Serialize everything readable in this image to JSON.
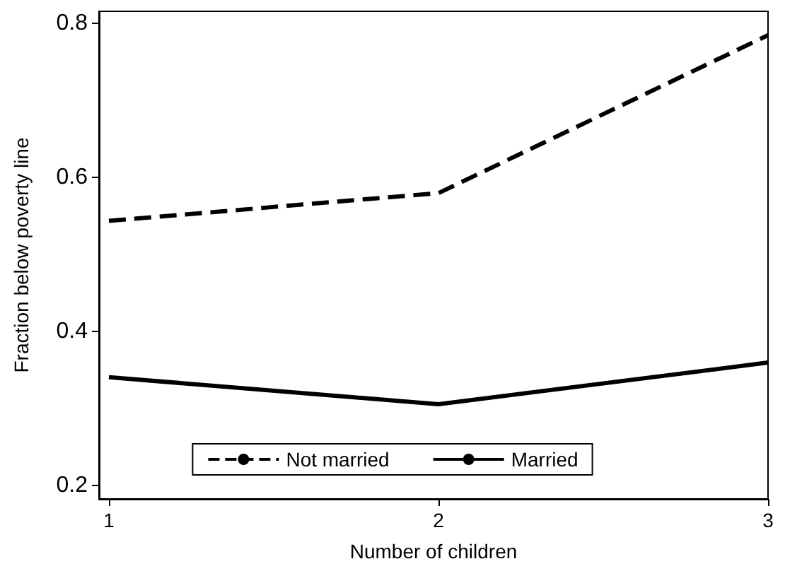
{
  "chart_data": {
    "type": "line",
    "xlabel": "Number of children",
    "ylabel": "Fraction below poverty line",
    "x": [
      1,
      2,
      3
    ],
    "xlim": [
      0.97,
      3
    ],
    "xticks": [
      1,
      2,
      3
    ],
    "ylim": [
      0.183,
      0.816
    ],
    "yticks": [
      0.2,
      0.4,
      0.6,
      0.8
    ],
    "series": [
      {
        "name": "Not married",
        "color": "#000000",
        "line_style": "dashed",
        "values": [
          0.544,
          0.58,
          0.785
        ]
      },
      {
        "name": "Married",
        "color": "#000000",
        "line_style": "solid",
        "values": [
          0.341,
          0.306,
          0.36
        ]
      }
    ],
    "grid": false,
    "legend": "bottom",
    "marker": "none"
  }
}
